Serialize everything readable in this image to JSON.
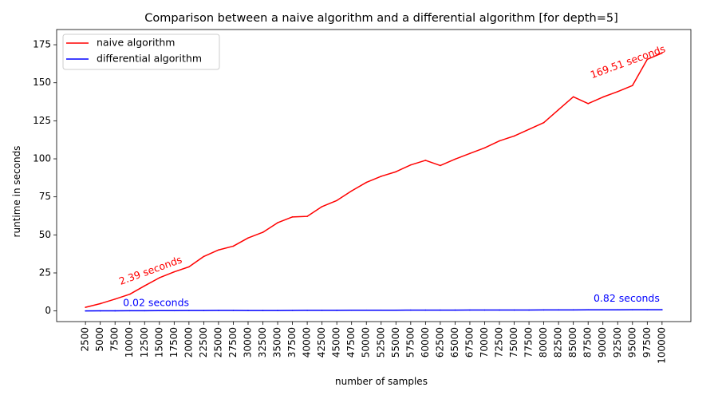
{
  "chart_data": {
    "type": "line",
    "title": "Comparison between a naive algorithm and a differential algorithm [for depth=5]",
    "xlabel": "number of samples",
    "ylabel": "runtime in seconds",
    "x": [
      2500,
      5000,
      7500,
      10000,
      12500,
      15000,
      17500,
      20000,
      22500,
      25000,
      27500,
      30000,
      32500,
      35000,
      37500,
      40000,
      42500,
      45000,
      47500,
      50000,
      52500,
      55000,
      57500,
      60000,
      62500,
      65000,
      67500,
      70000,
      72500,
      75000,
      77500,
      80000,
      82500,
      85000,
      87500,
      90000,
      92500,
      95000,
      97500,
      100000
    ],
    "ylim": [
      -7,
      185
    ],
    "yticks": [
      0,
      25,
      50,
      75,
      100,
      125,
      150,
      175
    ],
    "legend_position": "upper-left",
    "series": [
      {
        "name": "naive algorithm",
        "color": "#ff0000",
        "values": [
          2.39,
          4.8,
          7.8,
          11.0,
          16.5,
          21.8,
          25.7,
          29.0,
          35.8,
          40.1,
          42.6,
          48.0,
          51.7,
          58.0,
          61.8,
          62.2,
          68.6,
          72.6,
          78.9,
          84.5,
          88.5,
          91.5,
          96.0,
          99.0,
          95.6,
          99.8,
          103.5,
          107.2,
          111.8,
          115.0,
          119.4,
          123.8,
          132.3,
          140.8,
          136.3,
          140.6,
          144.2,
          148.2,
          165.4,
          169.51
        ]
      },
      {
        "name": "differential algorithm",
        "color": "#0000ff",
        "values": [
          0.02,
          0.05,
          0.1,
          0.15,
          0.15,
          0.2,
          0.2,
          0.25,
          0.25,
          0.35,
          0.35,
          0.3,
          0.3,
          0.3,
          0.35,
          0.4,
          0.4,
          0.4,
          0.45,
          0.5,
          0.5,
          0.5,
          0.55,
          0.55,
          0.55,
          0.55,
          0.6,
          0.6,
          0.6,
          0.6,
          0.6,
          0.65,
          0.7,
          0.7,
          0.75,
          0.75,
          0.75,
          0.8,
          0.8,
          0.82
        ]
      }
    ],
    "annotations": [
      {
        "text": "2.39 seconds",
        "x": 2500,
        "y": 2.39,
        "series": 0,
        "position": "start"
      },
      {
        "text": "169.51 seconds",
        "x": 100000,
        "y": 169.51,
        "series": 0,
        "position": "end"
      },
      {
        "text": "0.02 seconds",
        "x": 2500,
        "y": 0.02,
        "series": 1,
        "position": "start"
      },
      {
        "text": "0.82 seconds",
        "x": 100000,
        "y": 0.82,
        "series": 1,
        "position": "end"
      }
    ]
  }
}
